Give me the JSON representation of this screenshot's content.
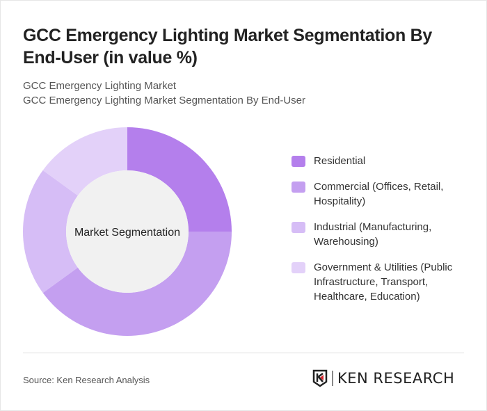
{
  "title": "GCC Emergency Lighting Market Segmentation By End-User (in value %)",
  "subtitle1": "GCC Emergency Lighting Market",
  "subtitle2": "GCC Emergency Lighting Market Segmentation By End-User",
  "source": "Source: Ken Research Analysis",
  "logo_text": "KEN RESEARCH",
  "chart_data": {
    "type": "pie",
    "variant": "donut",
    "center_label": "Market Segmentation",
    "legend_position": "right",
    "categories": [
      "Residential",
      "Commercial (Offices, Retail, Hospitality)",
      "Industrial (Manufacturing, Warehousing)",
      "Government & Utilities (Public Infrastructure, Transport, Healthcare, Education)"
    ],
    "values": [
      25,
      40,
      20,
      15
    ],
    "colors": [
      "#b47fec",
      "#c49ff0",
      "#d6bdf6",
      "#e3d1f9"
    ]
  }
}
